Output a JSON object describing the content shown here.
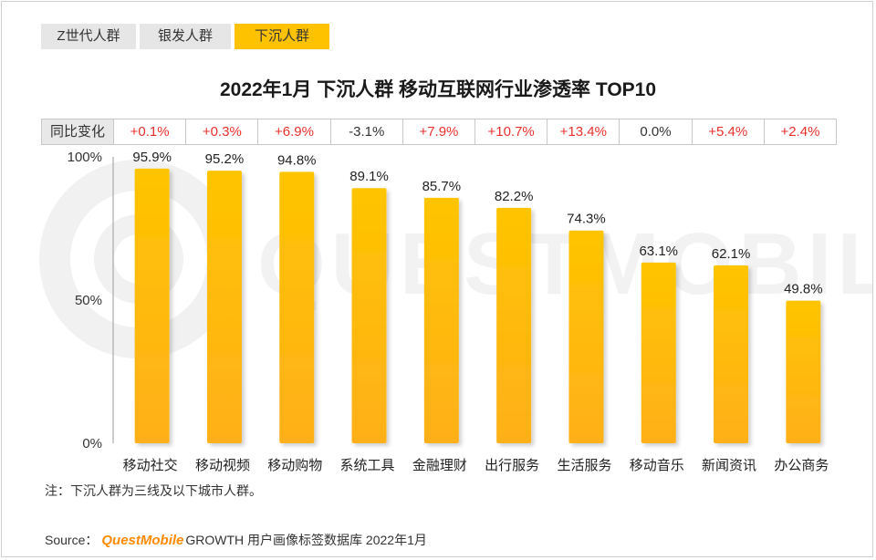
{
  "tabs": [
    {
      "label": "Z世代人群",
      "active": false
    },
    {
      "label": "银发人群",
      "active": false
    },
    {
      "label": "下沉人群",
      "active": true
    }
  ],
  "yoy": {
    "label": "同比变化",
    "values": [
      "+0.1%",
      "+0.3%",
      "+6.9%",
      "-3.1%",
      "+7.9%",
      "+10.7%",
      "+13.4%",
      "0.0%",
      "+5.4%",
      "+2.4%"
    ]
  },
  "chart_data": {
    "type": "bar",
    "title": "2022年1月 下沉人群 移动互联网行业渗透率 TOP10",
    "categories": [
      "移动社交",
      "移动视频",
      "移动购物",
      "系统工具",
      "金融理财",
      "出行服务",
      "生活服务",
      "移动音乐",
      "新闻资讯",
      "办公商务"
    ],
    "values": [
      95.9,
      95.2,
      94.8,
      89.1,
      85.7,
      82.2,
      74.3,
      63.1,
      62.1,
      49.8
    ],
    "value_labels": [
      "95.9%",
      "95.2%",
      "94.8%",
      "89.1%",
      "85.7%",
      "82.2%",
      "74.3%",
      "63.1%",
      "62.1%",
      "49.8%"
    ],
    "ylim": [
      0,
      100
    ],
    "yticks": [
      0,
      50,
      100
    ],
    "ytick_labels": [
      "0%",
      "50%",
      "100%"
    ],
    "xlabel": "",
    "ylabel": "",
    "bar_color_top": "#ffc400",
    "bar_color_bottom": "#ffb01a"
  },
  "watermark": "QUESTMOBILE",
  "note": "注：下沉人群为三线及以下城市人群。",
  "source": {
    "prefix": "Source：",
    "brand": "QuestMobile",
    "rest": "GROWTH 用户画像标签数据库 2022年1月"
  },
  "colors": {
    "positive": "#e8312c",
    "accent": "#ffc200"
  }
}
